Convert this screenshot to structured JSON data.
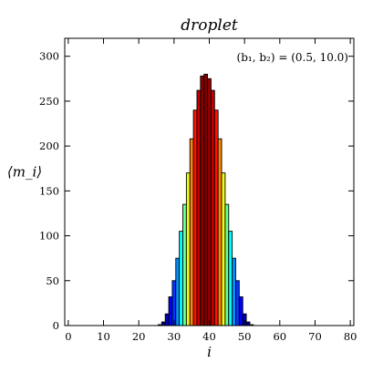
{
  "chart_data": {
    "type": "bar",
    "title": "droplet",
    "xlabel": "i",
    "ylabel": "⟨m_i⟩",
    "annotation": "(b₁, b₂) = (0.5, 10.0)",
    "xlim": [
      -1,
      81
    ],
    "ylim": [
      0,
      320
    ],
    "xticks": [
      0,
      10,
      20,
      30,
      40,
      50,
      60,
      70,
      80
    ],
    "yticks": [
      0,
      50,
      100,
      150,
      200,
      250,
      300
    ],
    "colormap": [
      "#00007f",
      "#0000ff",
      "#007fff",
      "#00ffff",
      "#7fff7f",
      "#ffff00",
      "#ff7f00",
      "#ff0000",
      "#7f0000"
    ],
    "grid": false,
    "legend": "none",
    "x": [
      0,
      1,
      2,
      3,
      4,
      5,
      6,
      7,
      8,
      9,
      10,
      11,
      12,
      13,
      14,
      15,
      16,
      17,
      18,
      19,
      20,
      21,
      22,
      23,
      24,
      25,
      26,
      27,
      28,
      29,
      30,
      31,
      32,
      33,
      34,
      35,
      36,
      37,
      38,
      39,
      40,
      41,
      42,
      43,
      44,
      45,
      46,
      47,
      48,
      49,
      50,
      51,
      52,
      53,
      54,
      55,
      56,
      57,
      58,
      59,
      60,
      61,
      62,
      63,
      64,
      65,
      66,
      67,
      68,
      69,
      70,
      71,
      72,
      73,
      74,
      75,
      76,
      77,
      78,
      79,
      80
    ],
    "values": [
      0,
      0,
      0,
      0,
      0,
      0,
      0,
      0,
      0,
      0,
      0,
      0,
      0,
      0,
      0,
      0,
      0,
      0,
      0,
      0,
      0,
      0,
      0,
      0,
      0,
      0,
      1,
      4,
      13,
      32,
      50,
      75,
      105,
      135,
      170,
      208,
      240,
      262,
      278,
      280,
      275,
      262,
      240,
      208,
      170,
      135,
      105,
      75,
      50,
      32,
      13,
      4,
      1,
      0,
      0,
      0,
      0,
      0,
      0,
      0,
      0,
      0,
      0,
      0,
      0,
      0,
      0,
      0,
      0,
      0,
      0,
      0,
      0,
      0,
      0,
      0,
      0,
      0,
      0,
      0,
      0
    ]
  }
}
